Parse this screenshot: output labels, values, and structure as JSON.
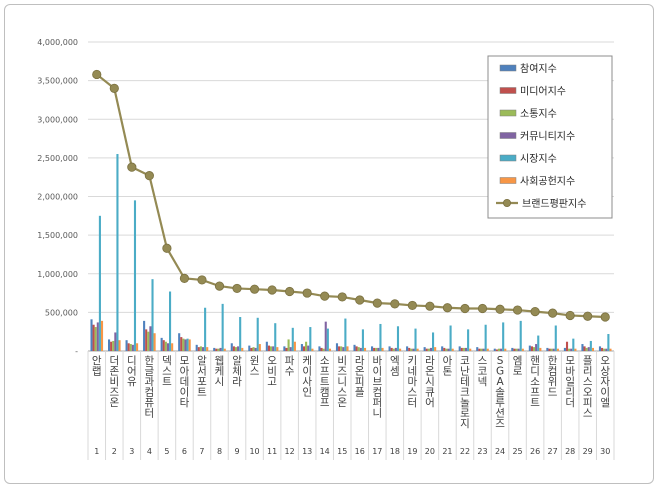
{
  "chart_data": {
    "type": "bar",
    "title": "",
    "xlabel": "",
    "ylabel": "",
    "ylim": [
      0,
      4000000
    ],
    "yticks": [
      "-",
      "500,000",
      "1,000,000",
      "1,500,000",
      "2,000,000",
      "2,500,000",
      "3,000,000",
      "3,500,000",
      "4,000,000"
    ],
    "grid": true,
    "legend_position": "top-right",
    "ranks": [
      "1",
      "2",
      "3",
      "4",
      "5",
      "6",
      "7",
      "8",
      "9",
      "10",
      "11",
      "12",
      "13",
      "14",
      "15",
      "16",
      "17",
      "18",
      "19",
      "20",
      "21",
      "22",
      "23",
      "24",
      "25",
      "26",
      "27",
      "28",
      "29",
      "30"
    ],
    "categories": [
      "안랩",
      "더존비즈온",
      "디어유",
      "한글과컴퓨터",
      "덱스트",
      "모아데이타",
      "알서포트",
      "웹케시",
      "알체라",
      "윈스",
      "오비고",
      "파수",
      "케이사인",
      "소프트캠프",
      "비즈니스온",
      "라온피플",
      "바이브컴퍼니",
      "엑셈",
      "키네마스터",
      "라온시큐어",
      "아톤",
      "코난테크놀로지",
      "스코넥",
      "SGA솔루션즈",
      "엠로",
      "핸디소프트",
      "한컴위드",
      "모바일리더",
      "플리스오피스",
      "오상자이엘"
    ],
    "series": [
      {
        "name": "참여지수",
        "color": "#4f81bd",
        "values": [
          410000,
          150000,
          140000,
          390000,
          170000,
          230000,
          80000,
          40000,
          100000,
          70000,
          120000,
          60000,
          90000,
          60000,
          100000,
          80000,
          60000,
          60000,
          60000,
          50000,
          60000,
          60000,
          50000,
          30000,
          40000,
          70000,
          40000,
          40000,
          90000,
          60000
        ]
      },
      {
        "name": "미디어지수",
        "color": "#c0504d",
        "values": [
          340000,
          120000,
          100000,
          280000,
          140000,
          180000,
          50000,
          30000,
          60000,
          40000,
          70000,
          40000,
          60000,
          40000,
          60000,
          60000,
          40000,
          40000,
          40000,
          30000,
          40000,
          40000,
          30000,
          20000,
          30000,
          60000,
          30000,
          120000,
          60000,
          40000
        ]
      },
      {
        "name": "소통지수",
        "color": "#9bbb59",
        "values": [
          310000,
          130000,
          90000,
          250000,
          120000,
          160000,
          60000,
          30000,
          50000,
          50000,
          60000,
          150000,
          120000,
          30000,
          60000,
          50000,
          40000,
          30000,
          30000,
          30000,
          30000,
          40000,
          30000,
          30000,
          30000,
          50000,
          30000,
          30000,
          40000,
          30000
        ]
      },
      {
        "name": "커뮤니티지수",
        "color": "#8064a2",
        "values": [
          370000,
          240000,
          80000,
          320000,
          100000,
          150000,
          50000,
          40000,
          60000,
          40000,
          60000,
          50000,
          70000,
          380000,
          50000,
          40000,
          40000,
          40000,
          30000,
          40000,
          30000,
          40000,
          30000,
          30000,
          30000,
          90000,
          30000,
          30000,
          50000,
          30000
        ]
      },
      {
        "name": "시장지수",
        "color": "#4bacc6",
        "values": [
          1750000,
          2550000,
          1950000,
          930000,
          770000,
          160000,
          560000,
          610000,
          440000,
          430000,
          360000,
          300000,
          310000,
          290000,
          420000,
          280000,
          350000,
          320000,
          290000,
          240000,
          330000,
          280000,
          340000,
          370000,
          390000,
          200000,
          330000,
          160000,
          130000,
          220000
        ]
      },
      {
        "name": "사회공헌지수",
        "color": "#f79646",
        "values": [
          390000,
          140000,
          100000,
          230000,
          100000,
          150000,
          50000,
          30000,
          40000,
          90000,
          50000,
          120000,
          30000,
          30000,
          60000,
          40000,
          40000,
          30000,
          30000,
          50000,
          30000,
          30000,
          30000,
          30000,
          30000,
          40000,
          30000,
          30000,
          40000,
          30000
        ]
      }
    ],
    "line": {
      "name": "브랜드평판지수",
      "color": "#948a54",
      "values": [
        3580000,
        3400000,
        2380000,
        2270000,
        1330000,
        940000,
        920000,
        840000,
        810000,
        800000,
        790000,
        770000,
        750000,
        710000,
        700000,
        660000,
        620000,
        610000,
        590000,
        580000,
        560000,
        550000,
        550000,
        540000,
        530000,
        510000,
        490000,
        460000,
        450000,
        440000
      ]
    }
  }
}
